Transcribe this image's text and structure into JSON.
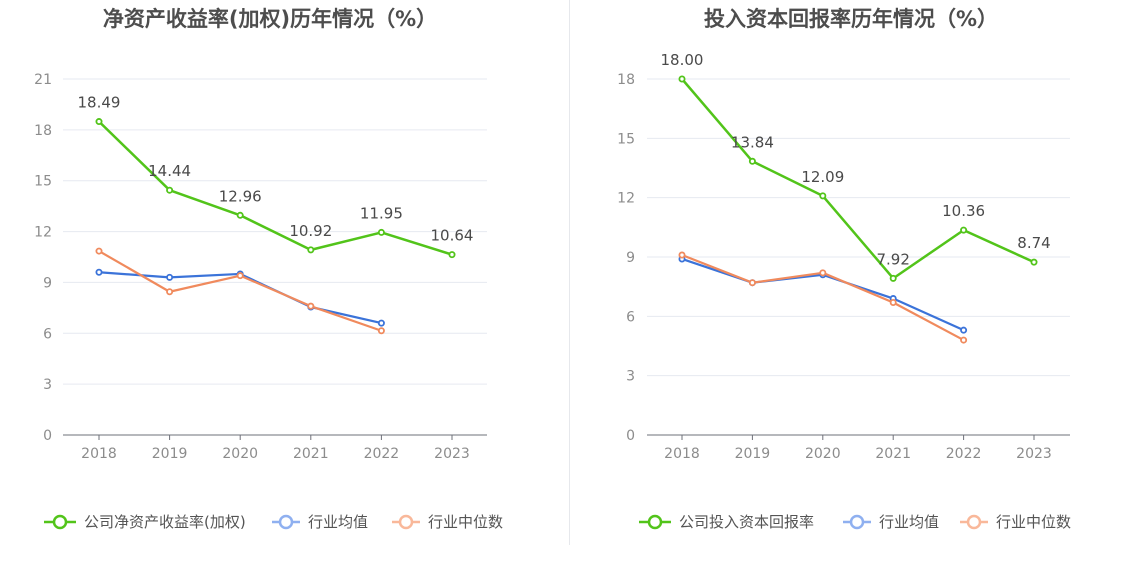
{
  "chart_data": [
    {
      "type": "line",
      "title": "净资产收益率(加权)历年情况（%）",
      "categories": [
        "2018",
        "2019",
        "2020",
        "2021",
        "2022",
        "2023"
      ],
      "ylim": [
        0,
        21
      ],
      "yticks": [
        0,
        3,
        6,
        9,
        12,
        15,
        18,
        21
      ],
      "series": [
        {
          "name": "公司净资产收益率(加权)",
          "color": "#52c41a",
          "values": [
            18.49,
            14.44,
            12.96,
            10.92,
            11.95,
            10.64
          ],
          "labels": [
            "18.49",
            "14.44",
            "12.96",
            "10.92",
            "11.95",
            "10.64"
          ]
        },
        {
          "name": "行业均值",
          "color": "#3b73d9",
          "values": [
            9.6,
            9.3,
            9.5,
            7.55,
            6.6,
            null
          ]
        },
        {
          "name": "行业中位数",
          "color": "#f08a5d",
          "values": [
            10.85,
            8.45,
            9.4,
            7.6,
            6.15,
            null
          ]
        }
      ]
    },
    {
      "type": "line",
      "title": "投入资本回报率历年情况（%）",
      "categories": [
        "2018",
        "2019",
        "2020",
        "2021",
        "2022",
        "2023"
      ],
      "ylim": [
        0,
        18
      ],
      "yticks": [
        0,
        3,
        6,
        9,
        12,
        15,
        18
      ],
      "series": [
        {
          "name": "公司投入资本回报率",
          "color": "#52c41a",
          "values": [
            18.0,
            13.84,
            12.09,
            7.92,
            10.36,
            8.74
          ],
          "labels": [
            "18.00",
            "13.84",
            "12.09",
            "7.92",
            "10.36",
            "8.74"
          ]
        },
        {
          "name": "行业均值",
          "color": "#3b73d9",
          "values": [
            8.9,
            7.7,
            8.1,
            6.9,
            5.3,
            null
          ]
        },
        {
          "name": "行业中位数",
          "color": "#f08a5d",
          "values": [
            9.1,
            7.7,
            8.2,
            6.7,
            4.8,
            null
          ]
        }
      ]
    }
  ],
  "legend_colors": [
    "#52c41a",
    "#8fb0f0",
    "#f9b89a"
  ]
}
